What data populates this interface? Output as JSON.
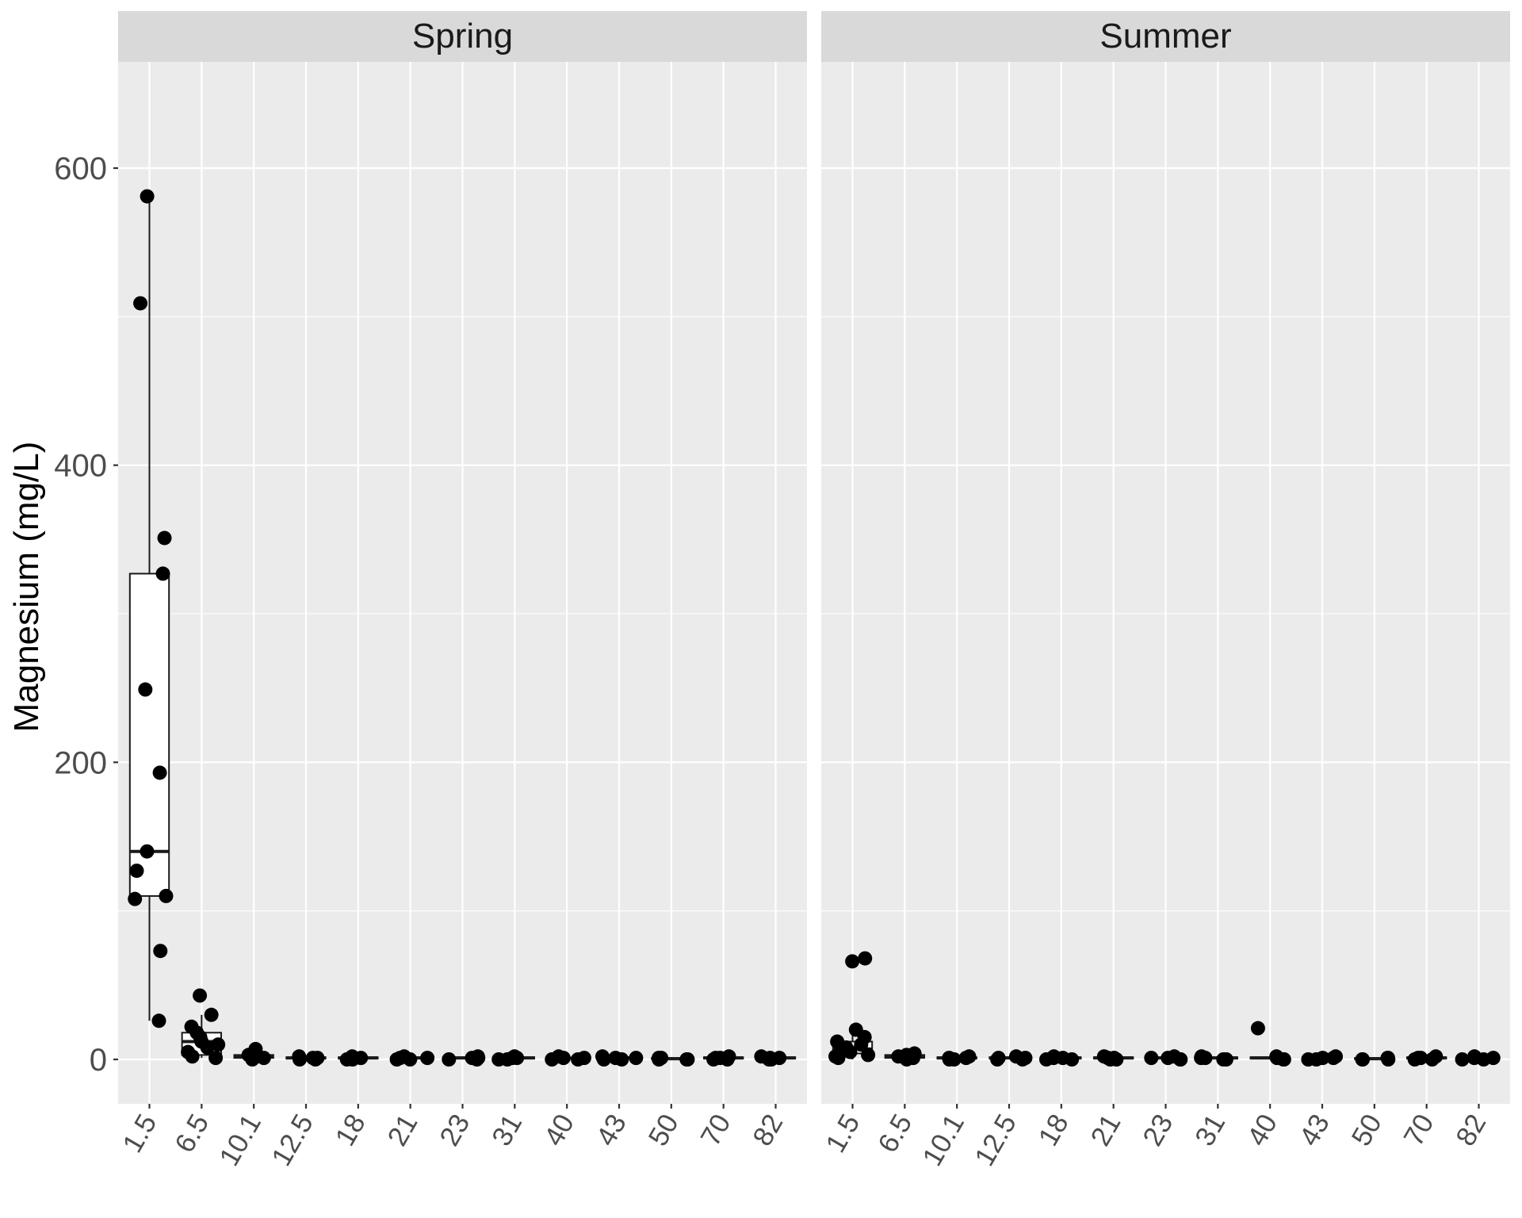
{
  "chart_data": {
    "type": "boxplot",
    "ylabel": "Magnesium (mg/L)",
    "xlabel": "",
    "ylim": [
      -33,
      672
    ],
    "yticks": [
      0,
      200,
      400,
      600
    ],
    "categories": [
      "1.5",
      "6.5",
      "10.1",
      "12.5",
      "18",
      "21",
      "23",
      "31",
      "40",
      "43",
      "50",
      "70",
      "82"
    ],
    "grid": true,
    "panels": [
      {
        "name": "Spring",
        "boxes": [
          {
            "category": "1.5",
            "q1": 110,
            "median": 140,
            "q3": 327,
            "lower": 26,
            "upper": 581
          },
          {
            "category": "6.5",
            "q1": 3,
            "median": 12,
            "q3": 18,
            "lower": 1,
            "upper": 30
          },
          {
            "category": "10.1",
            "q1": 1,
            "median": 2,
            "q3": 3,
            "lower": 0,
            "upper": 7
          },
          {
            "category": "12.5",
            "q1": 0.5,
            "median": 1,
            "q3": 1.5,
            "lower": 0,
            "upper": 2
          },
          {
            "category": "18",
            "q1": 0.5,
            "median": 1,
            "q3": 1.5,
            "lower": 0,
            "upper": 2
          },
          {
            "category": "21",
            "q1": 0.5,
            "median": 1,
            "q3": 1.5,
            "lower": 0,
            "upper": 2
          },
          {
            "category": "23",
            "q1": 0.5,
            "median": 1,
            "q3": 1.5,
            "lower": 0,
            "upper": 2
          },
          {
            "category": "31",
            "q1": 0.5,
            "median": 1,
            "q3": 1.5,
            "lower": 0,
            "upper": 2
          },
          {
            "category": "40",
            "q1": 0.3,
            "median": 0.8,
            "q3": 1.2,
            "lower": 0,
            "upper": 2
          },
          {
            "category": "43",
            "q1": 0.5,
            "median": 1,
            "q3": 1.5,
            "lower": 0,
            "upper": 2
          },
          {
            "category": "50",
            "q1": 0.2,
            "median": 0.5,
            "q3": 1,
            "lower": 0,
            "upper": 1.5
          },
          {
            "category": "70",
            "q1": 0.5,
            "median": 1,
            "q3": 1.5,
            "lower": 0,
            "upper": 2
          },
          {
            "category": "82",
            "q1": 0.5,
            "median": 1,
            "q3": 1.5,
            "lower": 0,
            "upper": 2
          }
        ],
        "points": [
          {
            "category": "1.5",
            "y": [
              581,
              509,
              351,
              327,
              249,
              193,
              140,
              127,
              110,
              108,
              73,
              26
            ]
          },
          {
            "category": "6.5",
            "y": [
              43,
              30,
              22,
              18,
              15,
              12,
              10,
              8,
              5,
              2,
              1
            ]
          },
          {
            "category": "10.1",
            "y": [
              7,
              3,
              2,
              1,
              0
            ]
          },
          {
            "category": "12.5",
            "y": [
              2,
              1,
              1,
              0,
              0
            ]
          },
          {
            "category": "18",
            "y": [
              2,
              1,
              1,
              0,
              0
            ]
          },
          {
            "category": "21",
            "y": [
              2,
              1,
              1,
              0,
              0
            ]
          },
          {
            "category": "23",
            "y": [
              2,
              1,
              1,
              0,
              0
            ]
          },
          {
            "category": "31",
            "y": [
              2,
              1,
              1,
              0,
              0
            ]
          },
          {
            "category": "40",
            "y": [
              2,
              1,
              1,
              0,
              0
            ]
          },
          {
            "category": "43",
            "y": [
              2,
              1,
              1,
              0,
              0
            ]
          },
          {
            "category": "50",
            "y": [
              1,
              1,
              0,
              0,
              0
            ]
          },
          {
            "category": "70",
            "y": [
              2,
              1,
              1,
              0,
              0
            ]
          },
          {
            "category": "82",
            "y": [
              2,
              1,
              1,
              0,
              0
            ]
          }
        ]
      },
      {
        "name": "Summer",
        "boxes": [
          {
            "category": "1.5",
            "q1": 4,
            "median": 7,
            "q3": 12,
            "lower": 0,
            "upper": 20
          },
          {
            "category": "6.5",
            "q1": 1,
            "median": 2,
            "q3": 3,
            "lower": 0,
            "upper": 4
          },
          {
            "category": "10.1",
            "q1": 0.5,
            "median": 1,
            "q3": 1.5,
            "lower": 0,
            "upper": 2
          },
          {
            "category": "12.5",
            "q1": 0.5,
            "median": 1,
            "q3": 1.5,
            "lower": 0,
            "upper": 2
          },
          {
            "category": "18",
            "q1": 0.5,
            "median": 1,
            "q3": 1.5,
            "lower": 0,
            "upper": 2
          },
          {
            "category": "21",
            "q1": 0.5,
            "median": 1,
            "q3": 1.5,
            "lower": 0,
            "upper": 2
          },
          {
            "category": "23",
            "q1": 0.5,
            "median": 1,
            "q3": 1.5,
            "lower": 0,
            "upper": 2
          },
          {
            "category": "31",
            "q1": 0.5,
            "median": 1,
            "q3": 1.5,
            "lower": 0,
            "upper": 2
          },
          {
            "category": "40",
            "q1": 0.5,
            "median": 1,
            "q3": 1.5,
            "lower": 0,
            "upper": 2
          },
          {
            "category": "43",
            "q1": 0.5,
            "median": 1,
            "q3": 1.5,
            "lower": 0,
            "upper": 2
          },
          {
            "category": "50",
            "q1": 0.2,
            "median": 0.5,
            "q3": 1,
            "lower": 0,
            "upper": 1.5
          },
          {
            "category": "70",
            "q1": 0.5,
            "median": 1,
            "q3": 1.5,
            "lower": 0,
            "upper": 2
          },
          {
            "category": "82",
            "q1": 0.5,
            "median": 1,
            "q3": 1.5,
            "lower": 0,
            "upper": 2
          }
        ],
        "points": [
          {
            "category": "1.5",
            "y": [
              68,
              66,
              20,
              15,
              12,
              10,
              8,
              6,
              5,
              3,
              2,
              1
            ]
          },
          {
            "category": "6.5",
            "y": [
              4,
              3,
              2,
              1,
              0
            ]
          },
          {
            "category": "10.1",
            "y": [
              2,
              1,
              1,
              0,
              0
            ]
          },
          {
            "category": "12.5",
            "y": [
              2,
              1,
              1,
              0,
              0
            ]
          },
          {
            "category": "18",
            "y": [
              2,
              1,
              1,
              0,
              0
            ]
          },
          {
            "category": "21",
            "y": [
              2,
              1,
              1,
              0,
              0
            ]
          },
          {
            "category": "23",
            "y": [
              2,
              1,
              1,
              0,
              0
            ]
          },
          {
            "category": "31",
            "y": [
              2,
              1,
              1,
              0,
              0
            ]
          },
          {
            "category": "40",
            "y": [
              21,
              2,
              1,
              0,
              0
            ]
          },
          {
            "category": "43",
            "y": [
              2,
              1,
              1,
              0,
              0
            ]
          },
          {
            "category": "50",
            "y": [
              1,
              1,
              0,
              0,
              0
            ]
          },
          {
            "category": "70",
            "y": [
              2,
              1,
              1,
              0,
              0
            ]
          },
          {
            "category": "82",
            "y": [
              2,
              1,
              1,
              0,
              0
            ]
          }
        ]
      }
    ]
  }
}
